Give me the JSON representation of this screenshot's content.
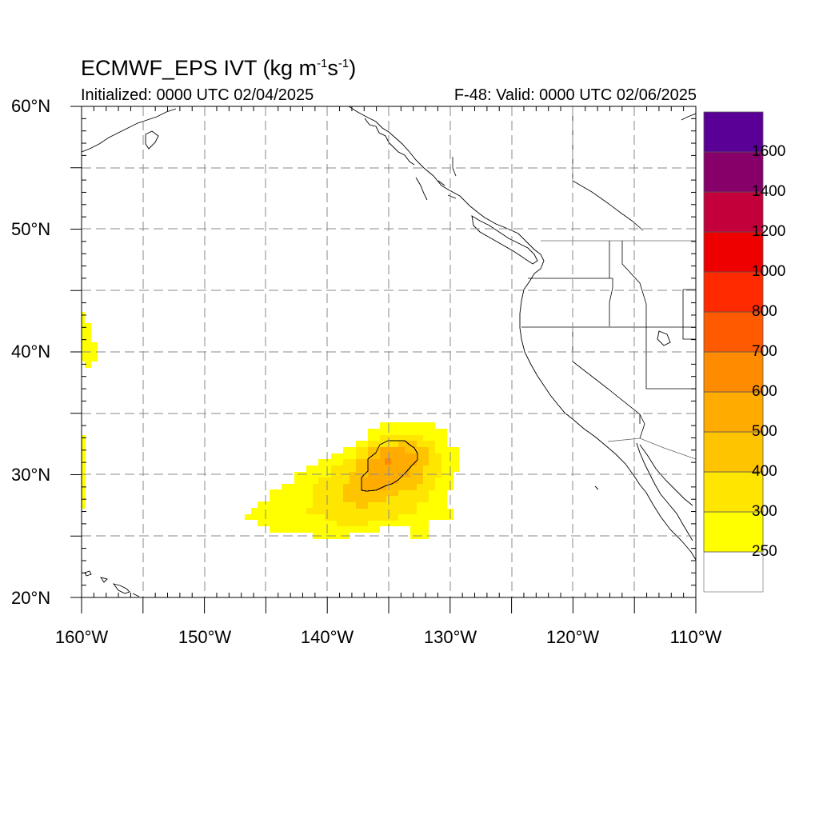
{
  "title": {
    "product": "ECMWF_EPS IVT",
    "units": "(kg m",
    "units_sup1": "-1",
    "units_mid": "s",
    "units_sup2": "-1",
    "units_end": ")",
    "initialized": "Initialized: 0000 UTC 02/04/2025",
    "valid": "F-48: Valid: 0000 UTC 02/06/2025"
  },
  "map": {
    "lat_range": [
      20,
      60
    ],
    "lon_range": [
      -160,
      -110
    ],
    "grid": "dashed",
    "lat_labels": [
      {
        "value": 60,
        "text": "60°N"
      },
      {
        "value": 50,
        "text": "50°N"
      },
      {
        "value": 40,
        "text": "40°N"
      },
      {
        "value": 30,
        "text": "30°N"
      },
      {
        "value": 20,
        "text": "20°N"
      }
    ],
    "lon_labels": [
      {
        "value": -160,
        "text": "160°W"
      },
      {
        "value": -150,
        "text": "150°W"
      },
      {
        "value": -140,
        "text": "140°W"
      },
      {
        "value": -130,
        "text": "130°W"
      },
      {
        "value": -120,
        "text": "120°W"
      },
      {
        "value": -110,
        "text": "110°W"
      }
    ]
  },
  "colorbar": {
    "levels": [
      "250",
      "300",
      "400",
      "500",
      "600",
      "700",
      "800",
      "1000",
      "1200",
      "1400",
      "1600"
    ],
    "colors": [
      "#ffffff",
      "#ffff00",
      "#ffe600",
      "#ffc400",
      "#ffab00",
      "#ff8c00",
      "#ff5a00",
      "#ff2a00",
      "#ee0000",
      "#c4003b",
      "#87006a",
      "#5a0096"
    ]
  },
  "ivt_features": [
    {
      "name": "Pacific atmospheric river plume",
      "center_lat": 30,
      "center_lon": -135,
      "peak_category": "600-700"
    },
    {
      "name": "Western edge plume near 40N",
      "center_lat": 40.5,
      "center_lon": -159.5,
      "peak_category": "250-300"
    },
    {
      "name": "Western edge plume near 30N",
      "center_lat": 30.5,
      "center_lon": -160,
      "peak_category": "250-300"
    }
  ]
}
